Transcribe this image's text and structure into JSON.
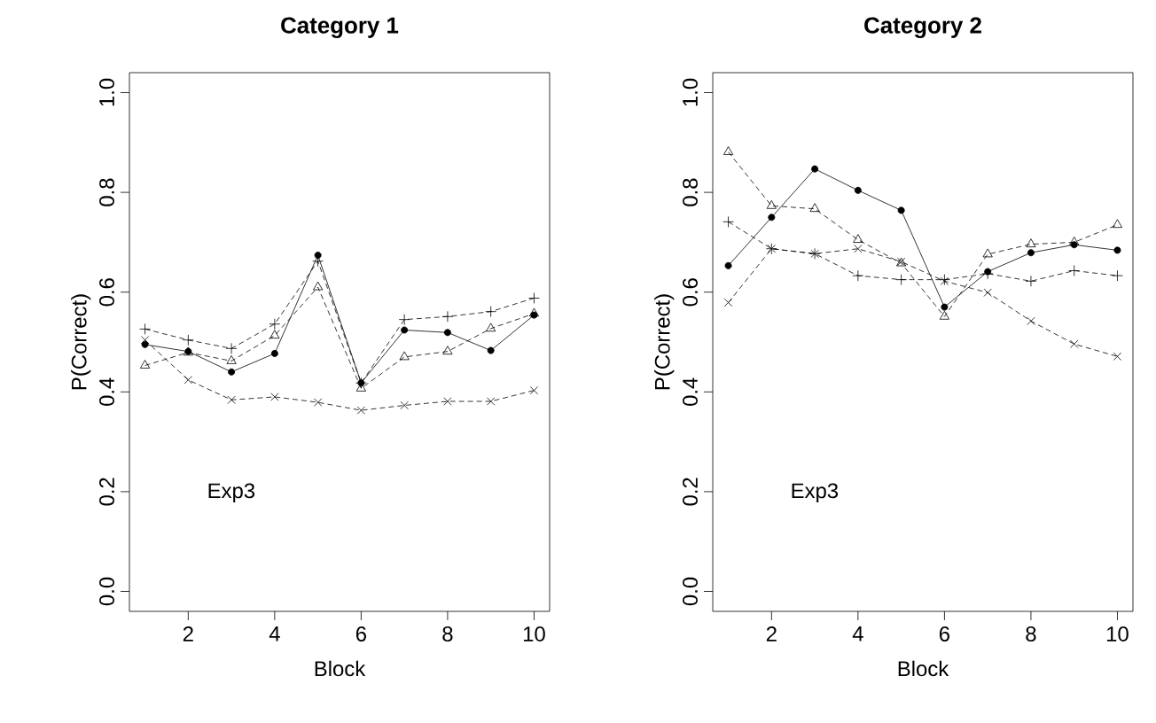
{
  "chart_data": [
    {
      "type": "line",
      "title": "Category 1",
      "xlabel": "Block",
      "ylabel": "P(Correct)",
      "x": [
        1,
        2,
        3,
        4,
        5,
        6,
        7,
        8,
        9,
        10
      ],
      "xlim": [
        0.64,
        10.36
      ],
      "ylim": [
        -0.04,
        1.04
      ],
      "xticks": [
        2,
        4,
        6,
        8,
        10
      ],
      "yticks": [
        {
          "value": 0,
          "label": "0.0"
        },
        {
          "value": 0.2,
          "label": "0.2"
        },
        {
          "value": 0.4,
          "label": "0.4"
        },
        {
          "value": 0.6,
          "label": "0.6"
        },
        {
          "value": 0.8,
          "label": "0.8"
        },
        {
          "value": 1.0,
          "label": "1.0"
        }
      ],
      "grid": false,
      "annotations": [
        "Exp3"
      ],
      "series": [
        {
          "color": "#000000",
          "marker": "circle",
          "line_style": "solid",
          "values": [
            0.495,
            0.481,
            0.44,
            0.477,
            0.674,
            0.418,
            0.524,
            0.519,
            0.483,
            0.554
          ]
        },
        {
          "color": "#000000",
          "marker": "cross",
          "line_style": "dashed",
          "values": [
            0.526,
            0.504,
            0.487,
            0.536,
            0.662,
            0.418,
            0.545,
            0.551,
            0.561,
            0.588
          ]
        },
        {
          "color": "#000000",
          "marker": "triangle",
          "line_style": "dashed",
          "values": [
            0.453,
            0.479,
            0.462,
            0.513,
            0.61,
            0.407,
            0.47,
            0.481,
            0.527,
            0.557
          ]
        },
        {
          "color": "#000000",
          "marker": "cross",
          "line_style": "dashed",
          "values": [
            0.504,
            0.424,
            0.384,
            0.39,
            0.379,
            0.363,
            0.373,
            0.381,
            0.381,
            0.403
          ]
        }
      ]
    },
    {
      "type": "line",
      "title": "Category 2",
      "xlabel": "Block",
      "ylabel": "P(Correct)",
      "x": [
        1,
        2,
        3,
        4,
        5,
        6,
        7,
        8,
        9,
        10
      ],
      "xlim": [
        0.64,
        10.36
      ],
      "ylim": [
        -0.04,
        1.04
      ],
      "xticks": [
        2,
        4,
        6,
        8,
        10
      ],
      "yticks": [
        {
          "value": 0,
          "label": "0.0"
        },
        {
          "value": 0.2,
          "label": "0.2"
        },
        {
          "value": 0.4,
          "label": "0.4"
        },
        {
          "value": 0.6,
          "label": "0.6"
        },
        {
          "value": 0.8,
          "label": "0.8"
        },
        {
          "value": 1.0,
          "label": "1.0"
        }
      ],
      "grid": false,
      "annotations": [
        "Exp3"
      ],
      "series": [
        {
          "color": "#000000",
          "marker": "circle",
          "line_style": "solid",
          "values": [
            0.653,
            0.75,
            0.847,
            0.804,
            0.764,
            0.57,
            0.641,
            0.679,
            0.695,
            0.684
          ]
        },
        {
          "color": "#000000",
          "marker": "cross",
          "line_style": "dashed",
          "values": [
            0.741,
            0.687,
            0.677,
            0.633,
            0.625,
            0.625,
            0.637,
            0.622,
            0.643,
            0.633
          ]
        },
        {
          "color": "#000000",
          "marker": "triangle",
          "line_style": "dashed",
          "values": [
            0.881,
            0.773,
            0.767,
            0.705,
            0.658,
            0.551,
            0.676,
            0.696,
            0.7,
            0.735
          ]
        },
        {
          "color": "#000000",
          "marker": "cross",
          "line_style": "dashed",
          "values": [
            0.579,
            0.687,
            0.677,
            0.687,
            0.661,
            0.622,
            0.599,
            0.542,
            0.496,
            0.471
          ]
        }
      ]
    }
  ]
}
